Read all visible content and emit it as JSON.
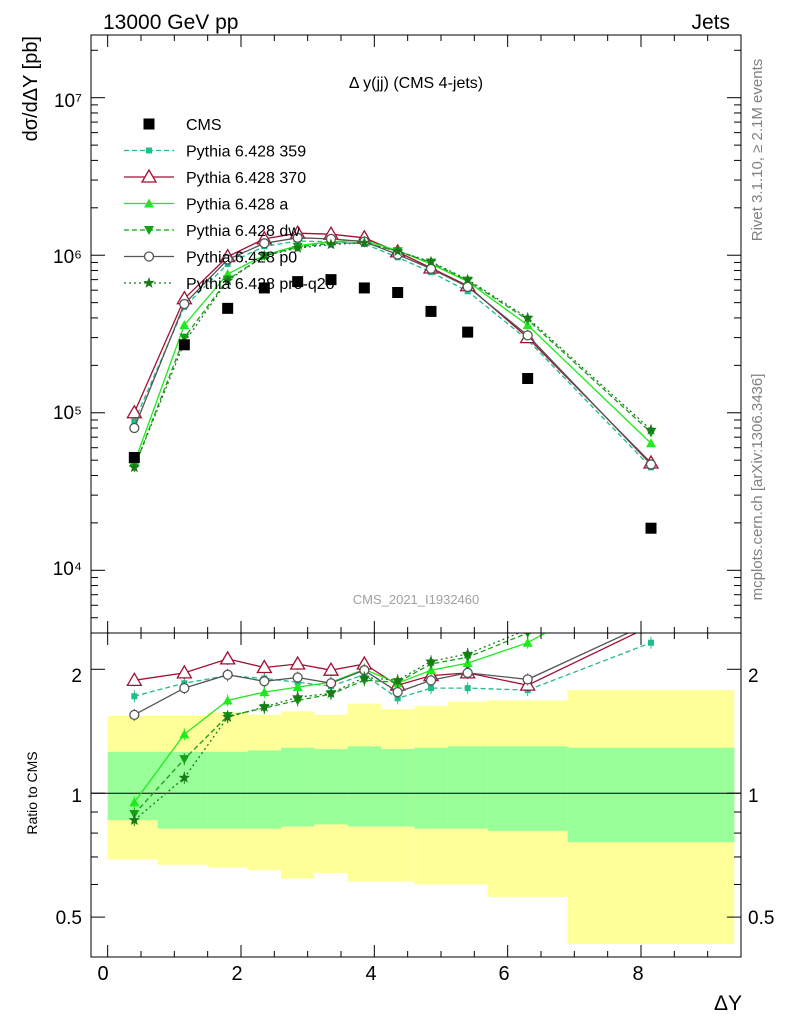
{
  "header": {
    "energy_label": "13000 GeV pp",
    "category_label": "Jets",
    "title": "Δ y(jj) (CMS 4-jets)",
    "watermark": "CMS_2021_I1932460",
    "side_text_1": "Rivet 3.1.10, ≥ 2.1M events",
    "side_text_2": "mcplots.cern.ch [arXiv:1306.3436]"
  },
  "axes": {
    "ylabel_main": "dσ/dΔY [pb]",
    "ylabel_ratio": "Ratio to CMS",
    "xlabel": "ΔY",
    "x_ticks": [
      "0",
      "2",
      "4",
      "6",
      "8"
    ],
    "y_main_ticks": [
      "10⁴",
      "10⁵",
      "10⁶",
      "10⁷"
    ],
    "y_ratio_ticks": [
      "0.5",
      "1",
      "2"
    ]
  },
  "chart_data": {
    "type": "scatter",
    "xlim": [
      -0.25,
      9.5
    ],
    "main_ylim": [
      4000,
      25000000
    ],
    "main_yscale": "log",
    "ratio_ylim": [
      0.4,
      2.45
    ],
    "ratio_yscale": "log",
    "legend_position": "top-left",
    "bins": [
      {
        "lo": 0.0,
        "hi": 0.75
      },
      {
        "lo": 0.75,
        "hi": 1.5
      },
      {
        "lo": 1.5,
        "hi": 2.1
      },
      {
        "lo": 2.1,
        "hi": 2.6
      },
      {
        "lo": 2.6,
        "hi": 3.1
      },
      {
        "lo": 3.1,
        "hi": 3.6
      },
      {
        "lo": 3.6,
        "hi": 4.1
      },
      {
        "lo": 4.1,
        "hi": 4.6
      },
      {
        "lo": 4.6,
        "hi": 5.1
      },
      {
        "lo": 5.1,
        "hi": 5.7
      },
      {
        "lo": 5.7,
        "hi": 6.9
      },
      {
        "lo": 6.9,
        "hi": 9.4
      }
    ],
    "x": [
      0.4,
      1.15,
      1.8,
      2.35,
      2.85,
      3.35,
      3.85,
      4.35,
      4.85,
      5.4,
      6.3,
      8.15
    ],
    "data": {
      "name": "CMS",
      "values": [
        52000,
        270000,
        460000,
        620000,
        680000,
        700000,
        620000,
        580000,
        440000,
        325000,
        165000,
        18500
      ]
    },
    "bands": {
      "stat_upper": [
        1.26,
        1.26,
        1.26,
        1.27,
        1.29,
        1.28,
        1.3,
        1.28,
        1.29,
        1.3,
        1.3,
        1.29
      ],
      "stat_lower": [
        0.86,
        0.82,
        0.82,
        0.82,
        0.83,
        0.84,
        0.83,
        0.83,
        0.82,
        0.82,
        0.81,
        0.76
      ],
      "total_upper": [
        1.54,
        1.54,
        1.57,
        1.55,
        1.58,
        1.55,
        1.65,
        1.6,
        1.63,
        1.67,
        1.68,
        1.78
      ],
      "total_lower": [
        0.69,
        0.67,
        0.66,
        0.65,
        0.62,
        0.64,
        0.61,
        0.61,
        0.6,
        0.6,
        0.56,
        0.43
      ]
    },
    "series": [
      {
        "name": "Pythia 6.428 359",
        "color": "#1fbc8c",
        "marker": "square-small",
        "dash": "5,3",
        "values": [
          88000,
          470000,
          880000,
          1140000,
          1230000,
          1220000,
          1180000,
          970000,
          780000,
          590000,
          290000,
          45000
        ],
        "ratio": [
          1.72,
          1.85,
          1.93,
          1.9,
          1.86,
          1.82,
          1.94,
          1.7,
          1.8,
          1.8,
          1.78,
          2.32
        ]
      },
      {
        "name": "Pythia 6.428 370",
        "color": "#a01030",
        "marker": "triangle-open",
        "dash": "",
        "values": [
          100000,
          530000,
          980000,
          1270000,
          1380000,
          1360000,
          1290000,
          1050000,
          830000,
          640000,
          300000,
          48000
        ],
        "ratio": [
          1.88,
          1.96,
          2.12,
          2.02,
          2.06,
          1.99,
          2.06,
          1.83,
          1.93,
          1.96,
          1.83,
          2.55
        ]
      },
      {
        "name": "Pythia 6.428 a",
        "color": "#1eea1e",
        "marker": "triangle-filled",
        "dash": "",
        "values": [
          48000,
          360000,
          760000,
          1000000,
          1150000,
          1220000,
          1240000,
          1070000,
          880000,
          680000,
          360000,
          64000
        ],
        "ratio": [
          0.95,
          1.39,
          1.68,
          1.76,
          1.81,
          1.86,
          2.0,
          1.85,
          1.99,
          2.07,
          2.32,
          3.4
        ]
      },
      {
        "name": "Pythia 6.428 dw",
        "color": "#15a015",
        "marker": "triangle-down",
        "dash": "5,3",
        "values": [
          45000,
          300000,
          700000,
          990000,
          1130000,
          1190000,
          1200000,
          1060000,
          900000,
          690000,
          390000,
          75000
        ],
        "ratio": [
          0.89,
          1.21,
          1.54,
          1.61,
          1.68,
          1.74,
          1.88,
          1.86,
          2.06,
          2.14,
          2.45,
          3.9
        ]
      },
      {
        "name": "Pythia 6.428 p0",
        "color": "#555555",
        "marker": "circle-open",
        "dash": "",
        "values": [
          80000,
          490000,
          940000,
          1190000,
          1290000,
          1270000,
          1220000,
          1010000,
          820000,
          630000,
          310000,
          47000
        ],
        "ratio": [
          1.55,
          1.8,
          1.94,
          1.87,
          1.91,
          1.85,
          1.99,
          1.76,
          1.88,
          1.96,
          1.89,
          2.6
        ]
      },
      {
        "name": "Pythia 6.428 pro-q2o",
        "color": "#1a7a1a",
        "marker": "star",
        "dash": "2,3",
        "values": [
          45000,
          280000,
          690000,
          990000,
          1110000,
          1170000,
          1200000,
          1060000,
          910000,
          700000,
          400000,
          78000
        ],
        "ratio": [
          0.86,
          1.09,
          1.53,
          1.62,
          1.71,
          1.75,
          1.91,
          1.88,
          2.09,
          2.18,
          2.5,
          4.0
        ]
      }
    ]
  }
}
